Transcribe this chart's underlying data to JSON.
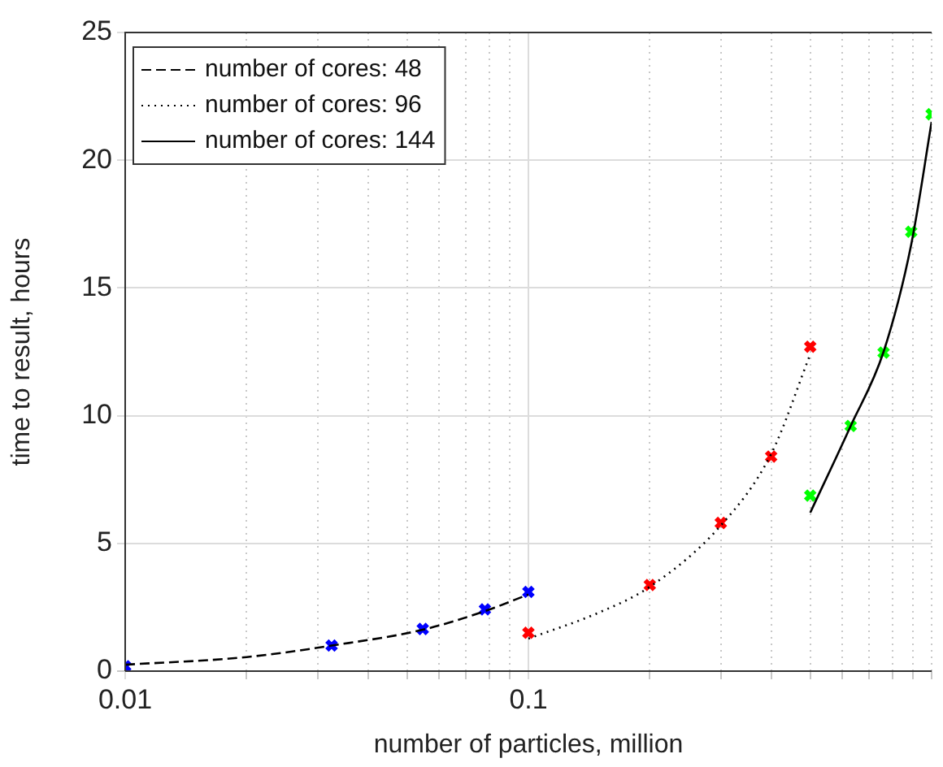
{
  "chart_data": {
    "type": "line",
    "xlabel": "number of particles, million",
    "ylabel": "time to result, hours",
    "log": "x",
    "grid": true,
    "legend": "top left",
    "xlim": [
      0.01,
      1
    ],
    "xticks": [
      0.01,
      {
        "value": 0.02,
        "label": null
      },
      {
        "value": 0.03,
        "label": null
      },
      {
        "value": 0.04,
        "label": null
      },
      {
        "value": 0.05,
        "label": null
      },
      {
        "value": 0.06,
        "label": null
      },
      {
        "value": 0.07,
        "label": null
      },
      {
        "value": 0.08,
        "label": null
      },
      {
        "value": 0.09,
        "label": null
      },
      0.1,
      {
        "value": 0.2,
        "label": null
      },
      {
        "value": 0.3,
        "label": null
      },
      {
        "value": 0.4,
        "label": null
      },
      {
        "value": 0.5,
        "label": null
      },
      {
        "value": 0.6,
        "label": null
      },
      {
        "value": 0.7,
        "label": null
      },
      {
        "value": 0.8,
        "label": null
      },
      {
        "value": 0.9,
        "label": null
      },
      {
        "value": 1,
        "label": null
      }
    ],
    "ylim": [
      0,
      25
    ],
    "yticks": [
      0,
      5,
      10,
      15,
      20,
      25
    ],
    "series": [
      {
        "type": "line",
        "name": "number of cores: 48",
        "color": "#000000",
        "line_style": "dashed",
        "marker": "none",
        "x": [
          0.01,
          0.02,
          0.0325,
          0.0547,
          0.078,
          0.1
        ],
        "values": [
          0.25,
          0.55,
          1.0,
          1.62,
          2.35,
          3.0
        ]
      },
      {
        "type": "line",
        "name": "number of cores: 96",
        "color": "#000000",
        "line_style": "dotted",
        "marker": "none",
        "x": [
          0.1,
          0.15,
          0.2,
          0.3,
          0.4,
          0.5
        ],
        "values": [
          1.27,
          2.3,
          3.3,
          5.7,
          8.5,
          12.4
        ]
      },
      {
        "type": "line",
        "name": "number of cores: 144",
        "color": "#000000",
        "line_style": "solid",
        "marker": "none",
        "x": [
          0.5,
          0.63,
          0.76,
          0.89,
          1.0
        ],
        "values": [
          6.2,
          9.6,
          12.5,
          16.7,
          21.5
        ]
      },
      {
        "type": "scatter",
        "color": "#0000ff",
        "marker": "cross",
        "x": [
          0.01,
          0.0325,
          0.0547,
          0.078,
          0.1
        ],
        "values": [
          0.19,
          1.0,
          1.65,
          2.42,
          3.1
        ]
      },
      {
        "type": "scatter",
        "color": "#ff0000",
        "marker": "cross",
        "x": [
          0.1,
          0.2,
          0.3,
          0.4,
          0.5
        ],
        "values": [
          1.5,
          3.37,
          5.8,
          8.4,
          12.7
        ]
      },
      {
        "type": "scatter",
        "color": "#00ff00",
        "marker": "cross",
        "x": [
          0.5,
          0.63,
          0.76,
          0.89,
          1.0
        ],
        "values": [
          6.87,
          9.6,
          12.47,
          17.2,
          21.8
        ]
      }
    ]
  }
}
